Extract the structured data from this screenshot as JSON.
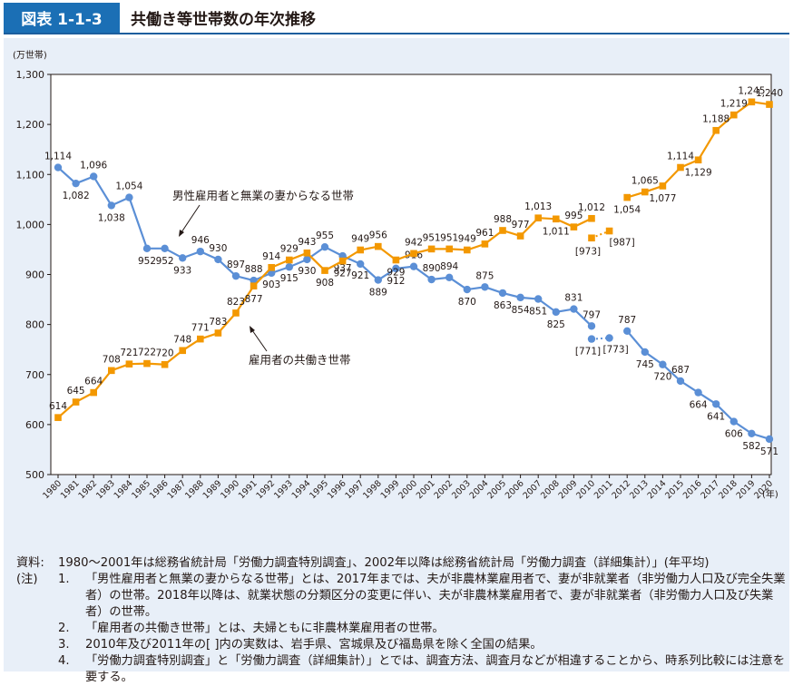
{
  "figure": {
    "label": "図表 1-1-3",
    "title": "共働き等世帯数の年次推移"
  },
  "chart_data": {
    "type": "line",
    "ylabel": "(万世帯)",
    "xlabel": "(年)",
    "ylim": [
      500,
      1300
    ],
    "yticks": [
      500,
      600,
      700,
      800,
      900,
      1000,
      1100,
      1200,
      1300
    ],
    "ytick_labels": [
      "500",
      "600",
      "700",
      "800",
      "900",
      "1,000",
      "1,100",
      "1,200",
      "1,300"
    ],
    "x": [
      1980,
      1981,
      1982,
      1983,
      1984,
      1985,
      1986,
      1987,
      1988,
      1989,
      1990,
      1991,
      1992,
      1993,
      1994,
      1995,
      1996,
      1997,
      1998,
      1999,
      2000,
      2001,
      2002,
      2003,
      2004,
      2005,
      2006,
      2007,
      2008,
      2009,
      2010,
      2011,
      2012,
      2013,
      2014,
      2015,
      2016,
      2017,
      2018,
      2019,
      2020
    ],
    "grid": false,
    "series": [
      {
        "name": "男性雇用者と無業の妻からなる世帯",
        "color": "#5b8fd6",
        "values": [
          1114,
          1082,
          1096,
          1038,
          1054,
          952,
          952,
          933,
          946,
          930,
          897,
          888,
          903,
          915,
          930,
          955,
          937,
          921,
          889,
          912,
          916,
          890,
          894,
          870,
          875,
          863,
          854,
          851,
          825,
          831,
          797,
          773,
          787,
          745,
          720,
          687,
          664,
          641,
          606,
          582,
          571
        ],
        "labels": [
          "1,114",
          "1,082",
          "1,096",
          "1,038",
          "1,054",
          "952",
          "952",
          "933",
          "946",
          "930",
          "897",
          "888",
          "903",
          "915",
          "930",
          "955",
          "937",
          "921",
          "889",
          "912",
          "916",
          "890",
          "894",
          "870",
          "875",
          "863",
          "854",
          "851",
          "825",
          "831",
          "797",
          "[773]",
          "787",
          "745",
          "720",
          "687",
          "664",
          "641",
          "606",
          "582",
          "571"
        ],
        "bracketed": [
          {
            "x": 2010,
            "y": 771,
            "label": "[771]"
          }
        ]
      },
      {
        "name": "雇用者の共働き世帯",
        "color": "#f39800",
        "values": [
          614,
          645,
          664,
          708,
          721,
          722,
          720,
          748,
          771,
          783,
          823,
          877,
          914,
          929,
          943,
          908,
          927,
          949,
          956,
          929,
          942,
          951,
          951,
          949,
          961,
          988,
          977,
          1013,
          1011,
          995,
          1012,
          987,
          1054,
          1065,
          1077,
          1114,
          1129,
          1188,
          1219,
          1245,
          1240
        ],
        "labels": [
          "614",
          "645",
          "664",
          "708",
          "721",
          "722",
          "720",
          "748",
          "771",
          "783",
          "823",
          "877",
          "914",
          "929",
          "943",
          "908",
          "927",
          "949",
          "956",
          "929",
          "942",
          "951",
          "951",
          "949",
          "961",
          "988",
          "977",
          "1,013",
          "1,011",
          "995",
          "1,012",
          "[987]",
          "1,054",
          "1,065",
          "1,077",
          "1,114",
          "1,129",
          "1,188",
          "1,219",
          "1,245",
          "1,240"
        ],
        "bracketed": [
          {
            "x": 2010,
            "y": 973,
            "label": "[973]"
          }
        ]
      }
    ],
    "annotations": [
      "男性雇用者と無業の妻からなる世帯",
      "雇用者の共働き世帯"
    ]
  },
  "notes": {
    "source_key": "資料:",
    "source_text": "1980〜2001年は総務省統計局「労働力調査特別調査」、2002年以降は総務省統計局「労働力調査（詳細集計）」(年平均)",
    "note_key": "(注)",
    "items": [
      {
        "num": "1.",
        "text": "「男性雇用者と無業の妻からなる世帯」とは、2017年までは、夫が非農林業雇用者で、妻が非就業者（非労働力人口及び完全失業者）の世帯。2018年以降は、就業状態の分類区分の変更に伴い、夫が非農林業雇用者で、妻が非就業者（非労働力人口及び失業者）の世帯。"
      },
      {
        "num": "2.",
        "text": "「雇用者の共働き世帯」とは、夫婦ともに非農林業雇用者の世帯。"
      },
      {
        "num": "3.",
        "text": "2010年及び2011年の[ ]内の実数は、岩手県、宮城県及び福島県を除く全国の結果。"
      },
      {
        "num": "4.",
        "text": "「労働力調査特別調査」と「労働力調査（詳細集計）」とでは、調査方法、調査月などが相違することから、時系列比較には注意を要する。"
      }
    ]
  }
}
